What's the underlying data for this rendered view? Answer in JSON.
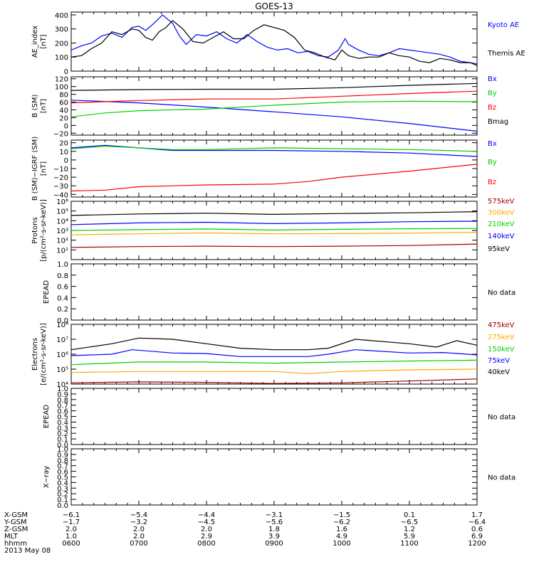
{
  "chart_data": {
    "type": "line",
    "title": "GOES-13",
    "x_range": [
      "0600",
      "1200"
    ],
    "x_ticks": [
      "0600",
      "0700",
      "0800",
      "0900",
      "1000",
      "1100",
      "1200"
    ],
    "panels": [
      {
        "id": "ae",
        "ylabel": [
          "AE_index",
          "[nT]"
        ],
        "ylim": [
          0,
          420
        ],
        "yticks": [
          "0",
          "100",
          "200",
          "300",
          "400"
        ],
        "ytick_values": [
          0,
          100,
          200,
          300,
          400
        ],
        "series": [
          {
            "name": "Kyoto AE",
            "color": "#0000ff",
            "t": [
              0,
              0.15,
              0.3,
              0.45,
              0.6,
              0.75,
              0.9,
              1.0,
              1.1,
              1.2,
              1.35,
              1.5,
              1.6,
              1.7,
              1.85,
              2.0,
              2.15,
              2.3,
              2.45,
              2.6,
              2.75,
              2.9,
              3.05,
              3.2,
              3.35,
              3.5,
              3.65,
              3.8,
              3.95,
              4.05,
              4.1,
              4.25,
              4.4,
              4.55,
              4.7,
              4.85,
              5.0,
              5.15,
              5.3,
              5.45,
              5.6,
              5.75,
              5.9,
              6.0
            ],
            "v": [
              150,
              180,
              200,
              250,
              270,
              240,
              310,
              320,
              290,
              330,
              400,
              340,
              250,
              190,
              260,
              250,
              280,
              230,
              200,
              260,
              210,
              170,
              150,
              160,
              130,
              140,
              110,
              100,
              150,
              230,
              190,
              150,
              120,
              110,
              130,
              160,
              150,
              140,
              130,
              120,
              100,
              70,
              60,
              50
            ]
          },
          {
            "name": "Themis AE",
            "color": "#000000",
            "t": [
              0,
              0.15,
              0.3,
              0.45,
              0.6,
              0.75,
              0.9,
              1.0,
              1.1,
              1.2,
              1.3,
              1.4,
              1.5,
              1.65,
              1.8,
              1.95,
              2.1,
              2.25,
              2.4,
              2.55,
              2.7,
              2.85,
              3.0,
              3.15,
              3.3,
              3.45,
              3.6,
              3.75,
              3.9,
              4.0,
              4.1,
              4.25,
              4.4,
              4.55,
              4.7,
              4.85,
              5.0,
              5.15,
              5.3,
              5.45,
              5.6,
              5.75,
              5.9,
              6.0
            ],
            "v": [
              100,
              110,
              160,
              200,
              280,
              260,
              300,
              290,
              240,
              220,
              280,
              310,
              360,
              300,
              210,
              200,
              240,
              280,
              230,
              230,
              290,
              330,
              310,
              290,
              240,
              150,
              130,
              100,
              80,
              150,
              110,
              90,
              100,
              100,
              130,
              110,
              100,
              70,
              60,
              90,
              80,
              60,
              60,
              40
            ]
          }
        ],
        "legend": [
          "Kyoto AE",
          "Themis AE"
        ]
      },
      {
        "id": "b",
        "ylabel": [
          "B (SM)",
          "[nT]"
        ],
        "ylim": [
          -25,
          125
        ],
        "yticks": [
          "−20",
          "0",
          "20",
          "40",
          "60",
          "80",
          "100",
          "120"
        ],
        "ytick_values": [
          -20,
          0,
          20,
          40,
          60,
          80,
          100,
          120
        ],
        "series": [
          {
            "name": "Bx",
            "color": "#0000ff",
            "t": [
              0,
              1,
              2,
              3,
              4,
              5,
              6
            ],
            "v": [
              65,
              58,
              47,
              35,
              22,
              5,
              -15
            ]
          },
          {
            "name": "By",
            "color": "#00d000",
            "t": [
              0,
              0.5,
              1,
              2,
              3,
              4,
              5,
              6
            ],
            "v": [
              22,
              32,
              38,
              42,
              52,
              60,
              62,
              61
            ]
          },
          {
            "name": "Bz",
            "color": "#ff0000",
            "t": [
              0,
              1,
              2,
              3,
              4,
              5,
              6
            ],
            "v": [
              58,
              64,
              68,
              68,
              75,
              82,
              88
            ]
          },
          {
            "name": "Bmag",
            "color": "#000000",
            "t": [
              0,
              1,
              2,
              3,
              4,
              5,
              6
            ],
            "v": [
              90,
              92,
              93,
              93,
              97,
              103,
              108
            ]
          }
        ],
        "legend": [
          "Bx",
          "By",
          "Bz",
          "Bmag"
        ]
      },
      {
        "id": "dbb",
        "ylabel": [
          "B (SM)−IGRF (SM)",
          "[nT]"
        ],
        "ylim": [
          -43,
          23
        ],
        "yticks": [
          "−40",
          "−30",
          "−20",
          "−10",
          "0",
          "10",
          "20"
        ],
        "ytick_values": [
          -40,
          -30,
          -20,
          -10,
          0,
          10,
          20
        ],
        "series": [
          {
            "name": "Bx",
            "color": "#0000ff",
            "t": [
              0,
              0.5,
              1,
              1.5,
              2,
              3,
              4,
              5,
              6
            ],
            "v": [
              14,
              17,
              14,
              11,
              11,
              11,
              10,
              8,
              4
            ]
          },
          {
            "name": "By",
            "color": "#00d000",
            "t": [
              0,
              0.5,
              1,
              1.5,
              2,
              3,
              4,
              5,
              6
            ],
            "v": [
              13,
              16,
              14,
              12,
              12,
              14,
              13,
              12,
              10
            ]
          },
          {
            "name": "Bz",
            "color": "#ff0000",
            "t": [
              0,
              0.5,
              1,
              2,
              3,
              3.5,
              4,
              5,
              6
            ],
            "v": [
              -36,
              -35,
              -31,
              -29,
              -28,
              -25,
              -20,
              -13,
              -5
            ]
          }
        ],
        "legend": [
          "Bx",
          "By",
          "Bz"
        ]
      },
      {
        "id": "protons",
        "ylabel": [
          "Protons",
          "[p/(cm²-s-sr-keV)]"
        ],
        "scale": "log",
        "ylim": [
          1,
          1000000
        ],
        "yticks": [
          "10¹",
          "10²",
          "10³",
          "10⁴",
          "10⁵",
          "10⁶"
        ],
        "ytick_values": [
          10,
          100,
          1000,
          10000,
          100000,
          1000000
        ],
        "series": [
          {
            "name": "575keV",
            "color": "#a00000",
            "t": [
              0,
              1,
              2,
              3,
              4,
              5,
              6
            ],
            "v": [
              18,
              22,
              24,
              22,
              24,
              28,
              40
            ]
          },
          {
            "name": "300keV",
            "color": "#ffaa00",
            "t": [
              0,
              1,
              2,
              3,
              4,
              5,
              6
            ],
            "v": [
              350,
              450,
              550,
              450,
              480,
              520,
              650
            ]
          },
          {
            "name": "210keV",
            "color": "#00d000",
            "t": [
              0,
              1,
              2,
              3,
              4,
              5,
              6
            ],
            "v": [
              1000,
              1200,
              1400,
              1100,
              1300,
              1500,
              1600
            ]
          },
          {
            "name": "140keV",
            "color": "#0000ff",
            "t": [
              0,
              1,
              2,
              3,
              4,
              5,
              6
            ],
            "v": [
              4000,
              6000,
              7000,
              5000,
              6000,
              8000,
              9000
            ]
          },
          {
            "name": "95keV",
            "color": "#000000",
            "t": [
              0,
              1,
              2,
              3,
              4,
              5,
              6
            ],
            "v": [
              35000,
              50000,
              60000,
              45000,
              55000,
              65000,
              85000
            ]
          }
        ],
        "legend": [
          "575keV",
          "300keV",
          "210keV",
          "140keV",
          "95keV"
        ]
      },
      {
        "id": "epead1",
        "ylabel": [
          "EPEAD"
        ],
        "ylim": [
          0,
          1
        ],
        "yticks": [
          "0.0",
          "0.2",
          "0.4",
          "0.6",
          "0.8",
          "1.0"
        ],
        "ytick_values": [
          0,
          0.2,
          0.4,
          0.6,
          0.8,
          1.0
        ],
        "series": [],
        "nodata": "No data"
      },
      {
        "id": "electrons",
        "ylabel": [
          "Electrons",
          "[e/(cm²-s-sr-keV)]"
        ],
        "scale": "log",
        "ylim": [
          10000,
          100000000
        ],
        "yticks": [
          "10⁴",
          "10⁵",
          "10⁶",
          "10⁷",
          "10⁸"
        ],
        "ytick_values": [
          10000,
          100000,
          1000000,
          10000000,
          100000000
        ],
        "series": [
          {
            "name": "475keV",
            "color": "#a00000",
            "t": [
              0,
              1,
              2,
              3,
              4,
              5,
              6
            ],
            "v": [
              12000,
              14000,
              13000,
              11000,
              12000,
              16000,
              22000
            ]
          },
          {
            "name": "275keV",
            "color": "#ffaa00",
            "t": [
              0,
              1,
              2,
              3,
              3.5,
              4,
              5,
              6
            ],
            "v": [
              60000,
              70000,
              70000,
              70000,
              50000,
              70000,
              90000,
              100000
            ]
          },
          {
            "name": "150keV",
            "color": "#00d000",
            "t": [
              0,
              1,
              2,
              3,
              4,
              5,
              6
            ],
            "v": [
              200000,
              300000,
              300000,
              250000,
              300000,
              350000,
              400000
            ]
          },
          {
            "name": "75keV",
            "color": "#0000ff",
            "t": [
              0,
              0.6,
              0.9,
              1.5,
              2,
              2.5,
              3,
              3.5,
              3.8,
              4.2,
              5,
              5.5,
              6
            ],
            "v": [
              800000,
              1000000,
              2000000,
              1200000,
              1100000,
              700000,
              700000,
              700000,
              1000000,
              2000000,
              1200000,
              1300000,
              900000
            ]
          },
          {
            "name": "40keV",
            "color": "#000000",
            "t": [
              0,
              0.6,
              1,
              1.5,
              2,
              2.5,
              3,
              3.5,
              3.8,
              4.2,
              5,
              5.4,
              5.7,
              6
            ],
            "v": [
              2000000,
              5000000,
              12000000,
              10000000,
              5000000,
              2500000,
              2000000,
              2000000,
              2500000,
              10000000,
              5000000,
              3000000,
              8000000,
              4000000
            ]
          }
        ],
        "legend": [
          "475keV",
          "275keV",
          "150keV",
          "75keV",
          "40keV"
        ]
      },
      {
        "id": "epead2",
        "ylabel": [
          "EPEAD"
        ],
        "ylim": [
          0,
          1
        ],
        "yticks": [
          "0.0",
          "0.1",
          "0.2",
          "0.3",
          "0.4",
          "0.5",
          "0.6",
          "0.7",
          "0.8",
          "0.9",
          "1.0"
        ],
        "ytick_values": [
          0,
          0.1,
          0.2,
          0.3,
          0.4,
          0.5,
          0.6,
          0.7,
          0.8,
          0.9,
          1.0
        ],
        "series": [],
        "nodata": "No data"
      },
      {
        "id": "xray",
        "ylabel": [
          "X−ray"
        ],
        "ylim": [
          0,
          1
        ],
        "yticks": [
          "0.0",
          "0.1",
          "0.2",
          "0.3",
          "0.4",
          "0.5",
          "0.6",
          "0.7",
          "0.8",
          "0.9",
          "1.0"
        ],
        "ytick_values": [
          0,
          0.1,
          0.2,
          0.3,
          0.4,
          0.5,
          0.6,
          0.7,
          0.8,
          0.9,
          1.0
        ],
        "series": [],
        "nodata": "No data"
      }
    ],
    "ephemeris": {
      "labels": [
        "X-GSM",
        "Y-GSM",
        "Z-GSM",
        "MLT",
        "hhmm"
      ],
      "columns": [
        [
          "−6.1",
          "−1.7",
          "2.0",
          "1.0",
          "0600"
        ],
        [
          "−5.4",
          "−3.2",
          "2.0",
          "2.0",
          "0700"
        ],
        [
          "−4.4",
          "−4.5",
          "2.0",
          "2.9",
          "0800"
        ],
        [
          "−3.1",
          "−5.6",
          "1.8",
          "3.9",
          "0900"
        ],
        [
          "−1.5",
          "−6.2",
          "1.6",
          "4.9",
          "1000"
        ],
        [
          "0.1",
          "−6.5",
          "1.2",
          "5.9",
          "1100"
        ],
        [
          "1.7",
          "−6.4",
          "0.6",
          "6.9",
          "1200"
        ]
      ],
      "date": "2013 May 08"
    }
  }
}
